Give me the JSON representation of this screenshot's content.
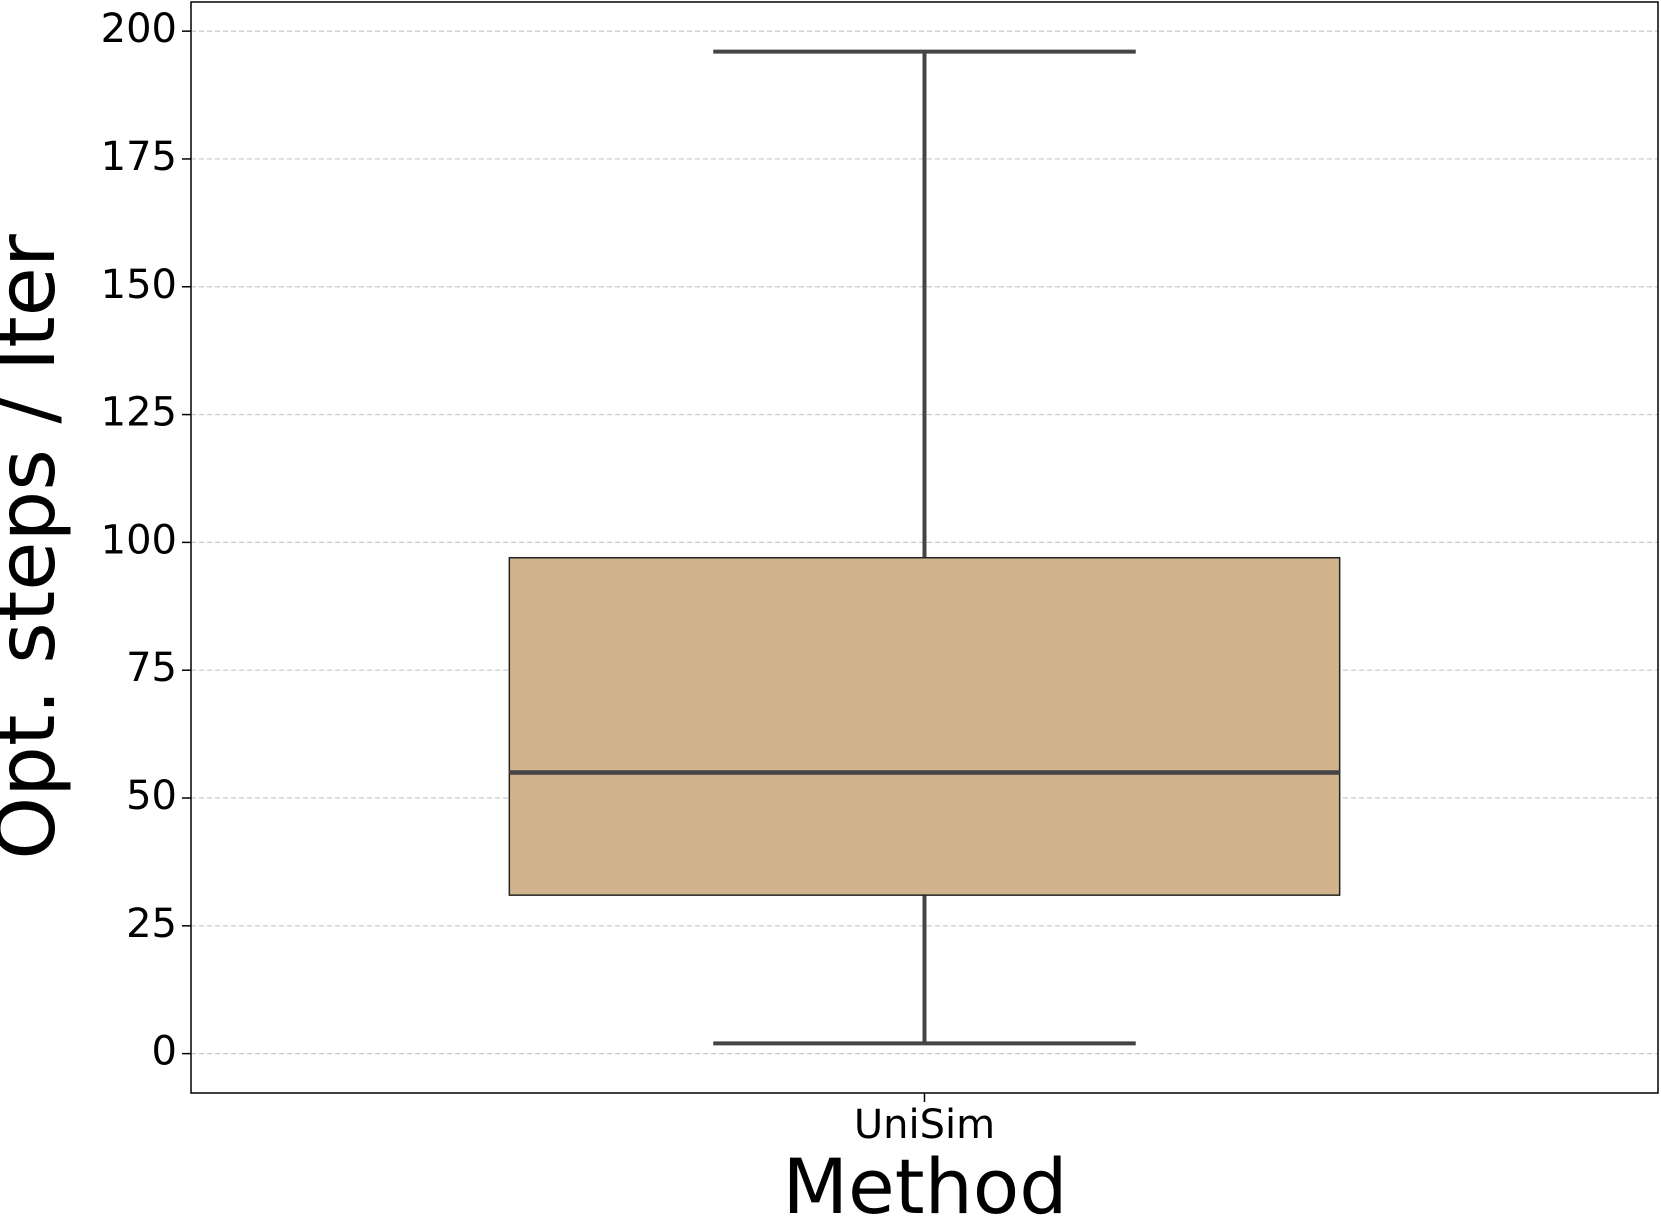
{
  "chart_data": {
    "type": "box",
    "x_label": "Method",
    "y_label": "Opt. steps / Iter",
    "categories": [
      "UniSim"
    ],
    "boxes": [
      {
        "min": 2,
        "q1": 31,
        "median": 55,
        "q3": 97,
        "max": 196
      }
    ],
    "color": "#d2b48c",
    "ylim": [
      -7.7,
      205.7
    ],
    "yticks": [
      0,
      25,
      50,
      75,
      100,
      125,
      150,
      175,
      200
    ],
    "grid": true
  }
}
